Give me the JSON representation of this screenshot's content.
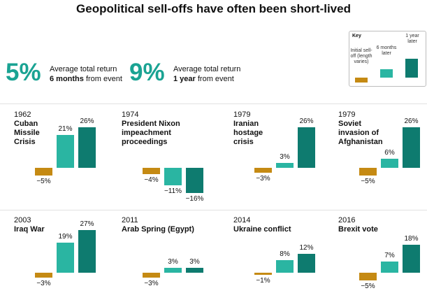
{
  "title": "Geopolitical sell-offs have often been short-lived",
  "summary": [
    {
      "value": "5%",
      "line1": "Average total return",
      "bold": "6 months",
      "rest": " from event"
    },
    {
      "value": "9%",
      "line1": "Average total return",
      "bold": "1 year",
      "rest": " from event"
    }
  ],
  "key": {
    "title": "Key",
    "labels": [
      "Initial sell-off (length varies)",
      "6 months later",
      "1 year later"
    ]
  },
  "colors": {
    "initial": "#c58a13",
    "six_months": "#2ab5a2",
    "one_year": "#0e7b6f",
    "stat": "#1aa393"
  },
  "chart_data": {
    "type": "bar",
    "title": "Geopolitical sell-offs have often been short-lived",
    "categories": [
      "Initial sell-off (length varies)",
      "6 months later",
      "1 year later"
    ],
    "events": [
      {
        "year": "1962",
        "name": "Cuban Missile Crisis",
        "lines": [
          "Cuban",
          "Missile",
          "Crisis"
        ],
        "values": [
          -5,
          21,
          26
        ],
        "labels": [
          "−5%",
          "21%",
          "26%"
        ]
      },
      {
        "year": "1974",
        "name": "President Nixon impeachment proceedings",
        "lines": [
          "President Nixon",
          "impeachment proceedings"
        ],
        "values": [
          -4,
          -11,
          -16
        ],
        "labels": [
          "−4%",
          "−11%",
          "−16%"
        ]
      },
      {
        "year": "1979",
        "name": "Iranian hostage crisis",
        "lines": [
          "Iranian",
          "hostage",
          "crisis"
        ],
        "values": [
          -3,
          3,
          26
        ],
        "labels": [
          "−3%",
          "3%",
          "26%"
        ]
      },
      {
        "year": "1979",
        "name": "Soviet invasion of Afghanistan",
        "lines": [
          "Soviet",
          "invasion of",
          "Afghanistan"
        ],
        "values": [
          -5,
          6,
          26
        ],
        "labels": [
          "−5%",
          "6%",
          "26%"
        ]
      },
      {
        "year": "2003",
        "name": "Iraq War",
        "lines": [
          "Iraq War"
        ],
        "values": [
          -3,
          19,
          27
        ],
        "labels": [
          "−3%",
          "19%",
          "27%"
        ]
      },
      {
        "year": "2011",
        "name": "Arab Spring (Egypt)",
        "lines": [
          "Arab Spring (Egypt)"
        ],
        "values": [
          -3,
          3,
          3
        ],
        "labels": [
          "−3%",
          "3%",
          "3%"
        ]
      },
      {
        "year": "2014",
        "name": "Ukraine conflict",
        "lines": [
          "Ukraine conflict"
        ],
        "values": [
          -1,
          8,
          12
        ],
        "labels": [
          "−1%",
          "8%",
          "12%"
        ]
      },
      {
        "year": "2016",
        "name": "Brexit vote",
        "lines": [
          "Brexit vote"
        ],
        "values": [
          -5,
          7,
          18
        ],
        "labels": [
          "−5%",
          "7%",
          "18%"
        ]
      }
    ]
  }
}
